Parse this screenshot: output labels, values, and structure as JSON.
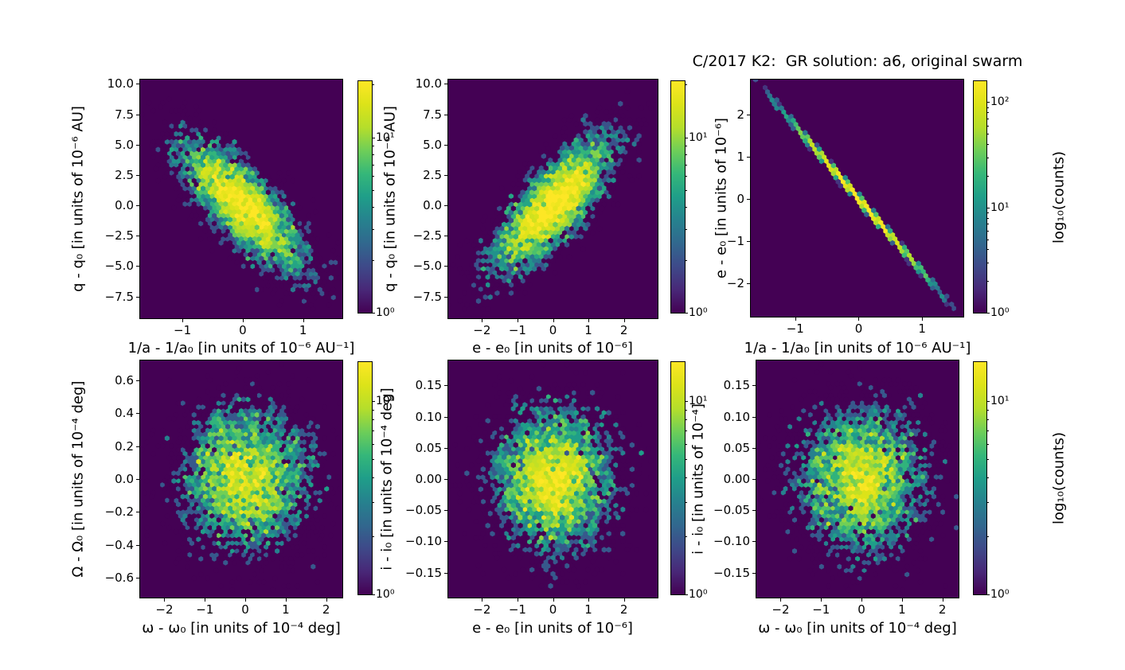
{
  "title": "C/2017 K2:  GR solution: a6, original swarm",
  "colors": {
    "figure_background": "#ffffff",
    "plot_background": "#440154",
    "colormap": "viridis",
    "viridis_stops": [
      "#440154",
      "#482878",
      "#3e4a89",
      "#31688e",
      "#26828e",
      "#1f9e89",
      "#35b779",
      "#6ece58",
      "#b5de2b",
      "#dce319",
      "#fde725"
    ],
    "text": "#000000"
  },
  "chart_data": [
    {
      "id": "top-left",
      "type": "hexbin",
      "xlabel": "1/a - 1/a₀ [in units of 10⁻⁶ AU⁻¹]",
      "ylabel": "q - q₀ [in units of 10⁻⁶ AU]",
      "xlim": [
        -1.7,
        1.65
      ],
      "ylim": [
        -9.3,
        10.35
      ],
      "xticks": [
        -1,
        0,
        1
      ],
      "xtick_labels": [
        "−1",
        "0",
        "1"
      ],
      "yticks": [
        10,
        7.5,
        5,
        2.5,
        0,
        -2.5,
        -5,
        -7.5
      ],
      "ytick_labels": [
        "10.0",
        "7.5",
        "5.0",
        "2.5",
        "0.0",
        "−2.5",
        "−5.0",
        "−7.5"
      ],
      "gridsize": 45,
      "distribution": {
        "kind": "bivariate-gaussian",
        "n": 5000,
        "mean": [
          0,
          0
        ],
        "sigma": [
          0.52,
          2.75
        ],
        "corr": -0.78,
        "seed": 11,
        "description": "anti-correlated elliptical cloud centered at origin"
      },
      "colorbar": {
        "scale": "log",
        "tick_exps": [
          0,
          1
        ],
        "tick_labels": [
          "10⁰",
          "10¹"
        ],
        "max_exp": 1.32,
        "label": ""
      }
    },
    {
      "id": "top-middle",
      "type": "hexbin",
      "xlabel": "e - e₀ [in units of 10⁻⁶]",
      "ylabel": "q - q₀ [in units of 10⁻⁶ AU]",
      "xlim": [
        -2.95,
        2.95
      ],
      "ylim": [
        -9.3,
        10.35
      ],
      "xticks": [
        -2,
        -1,
        0,
        1,
        2
      ],
      "xtick_labels": [
        "−2",
        "−1",
        "0",
        "1",
        "2"
      ],
      "yticks": [
        10,
        7.5,
        5,
        2.5,
        0,
        -2.5,
        -5,
        -7.5
      ],
      "ytick_labels": [
        "10.0",
        "7.5",
        "5.0",
        "2.5",
        "0.0",
        "−2.5",
        "−5.0",
        "−7.5"
      ],
      "gridsize": 45,
      "distribution": {
        "kind": "bivariate-gaussian",
        "n": 5000,
        "mean": [
          0,
          0
        ],
        "sigma": [
          0.85,
          2.75
        ],
        "corr": 0.78,
        "seed": 22,
        "description": "positively correlated elliptical cloud centered at origin"
      },
      "colorbar": {
        "scale": "log",
        "tick_exps": [
          0,
          1
        ],
        "tick_labels": [
          "10⁰",
          "10¹"
        ],
        "max_exp": 1.32,
        "label": ""
      }
    },
    {
      "id": "top-right",
      "type": "hexbin",
      "xlabel": "1/a - 1/a₀ [in units of 10⁻⁶ AU⁻¹]",
      "ylabel": "e - e₀ [in units of 10⁻⁶]",
      "xlim": [
        -1.7,
        1.65
      ],
      "ylim": [
        -2.78,
        2.82
      ],
      "xticks": [
        -1,
        0,
        1
      ],
      "xtick_labels": [
        "−1",
        "0",
        "1"
      ],
      "yticks": [
        2,
        1,
        0,
        -1,
        -2
      ],
      "ytick_labels": [
        "2",
        "1",
        "0",
        "−1",
        "−2"
      ],
      "gridsize": 45,
      "distribution": {
        "kind": "bivariate-gaussian",
        "n": 5000,
        "mean": [
          0,
          0
        ],
        "sigma": [
          0.52,
          0.9
        ],
        "corr": -0.9995,
        "seed": 33,
        "description": "nearly perfect anti-correlation: thin diagonal line from upper-left to lower-right, yellow (high count) in the middle, teal at the ends"
      },
      "colorbar": {
        "scale": "log",
        "tick_exps": [
          0,
          1,
          2
        ],
        "tick_labels": [
          "10⁰",
          "10¹",
          "10²"
        ],
        "max_exp": 2.2,
        "label": "log₁₀(counts)"
      }
    },
    {
      "id": "bottom-left",
      "type": "hexbin",
      "xlabel": "ω - ω₀ [in units of 10⁻⁴ deg]",
      "ylabel": "Ω - Ω₀ [in units of 10⁻⁴ deg]",
      "xlim": [
        -2.6,
        2.4
      ],
      "ylim": [
        -0.72,
        0.72
      ],
      "xticks": [
        -2,
        -1,
        0,
        1,
        2
      ],
      "xtick_labels": [
        "−2",
        "−1",
        "0",
        "1",
        "2"
      ],
      "yticks": [
        0.6,
        0.4,
        0.2,
        0,
        -0.2,
        -0.4,
        -0.6
      ],
      "ytick_labels": [
        "0.6",
        "0.4",
        "0.2",
        "0.0",
        "−0.2",
        "−0.4",
        "−0.6"
      ],
      "gridsize": 45,
      "distribution": {
        "kind": "bivariate-gaussian",
        "n": 5000,
        "mean": [
          0,
          0
        ],
        "sigma": [
          0.8,
          0.22
        ],
        "corr": 0,
        "seed": 44,
        "description": "round uncorrelated cloud centered at origin"
      },
      "colorbar": {
        "scale": "log",
        "tick_exps": [
          0,
          1
        ],
        "tick_labels": [
          "10⁰",
          "10¹"
        ],
        "max_exp": 1.2,
        "label": ""
      }
    },
    {
      "id": "bottom-middle",
      "type": "hexbin",
      "xlabel": "e - e₀ [in units of 10⁻⁶]",
      "ylabel": "i - i₀ [in units of 10⁻⁴ deg]",
      "xlim": [
        -2.95,
        2.95
      ],
      "ylim": [
        -0.19,
        0.19
      ],
      "xticks": [
        -2,
        -1,
        0,
        1,
        2
      ],
      "xtick_labels": [
        "−2",
        "−1",
        "0",
        "1",
        "2"
      ],
      "yticks": [
        0.15,
        0.1,
        0.05,
        0,
        -0.05,
        -0.1,
        -0.15
      ],
      "ytick_labels": [
        "0.15",
        "0.10",
        "0.05",
        "0.00",
        "−0.05",
        "−0.10",
        "−0.15"
      ],
      "gridsize": 45,
      "distribution": {
        "kind": "bivariate-gaussian",
        "n": 5000,
        "mean": [
          0,
          0
        ],
        "sigma": [
          0.85,
          0.058
        ],
        "corr": 0,
        "seed": 55,
        "description": "round uncorrelated cloud centered at origin"
      },
      "colorbar": {
        "scale": "log",
        "tick_exps": [
          0,
          1
        ],
        "tick_labels": [
          "10⁰",
          "10¹"
        ],
        "max_exp": 1.2,
        "label": ""
      }
    },
    {
      "id": "bottom-right",
      "type": "hexbin",
      "xlabel": "ω - ω₀ [in units of 10⁻⁴ deg]",
      "ylabel": "i - i₀ [in units of 10⁻⁴]",
      "xlim": [
        -2.6,
        2.4
      ],
      "ylim": [
        -0.19,
        0.19
      ],
      "xticks": [
        -2,
        -1,
        0,
        1,
        2
      ],
      "xtick_labels": [
        "−2",
        "−1",
        "0",
        "1",
        "2"
      ],
      "yticks": [
        0.15,
        0.1,
        0.05,
        0,
        -0.05,
        -0.1,
        -0.15
      ],
      "ytick_labels": [
        "0.15",
        "0.10",
        "0.05",
        "0.00",
        "−0.05",
        "−0.10",
        "−0.15"
      ],
      "gridsize": 45,
      "distribution": {
        "kind": "bivariate-gaussian",
        "n": 5000,
        "mean": [
          0,
          0
        ],
        "sigma": [
          0.8,
          0.058
        ],
        "corr": 0,
        "seed": 66,
        "description": "round uncorrelated cloud centered at origin"
      },
      "colorbar": {
        "scale": "log",
        "tick_exps": [
          0,
          1
        ],
        "tick_labels": [
          "10⁰",
          "10¹"
        ],
        "max_exp": 1.2,
        "label": "log₁₀(counts)"
      }
    }
  ]
}
